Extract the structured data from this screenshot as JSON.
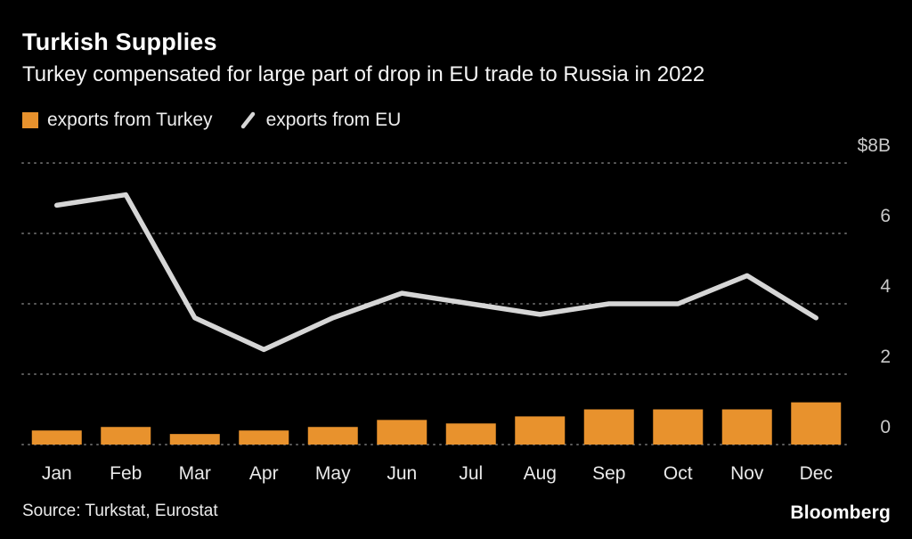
{
  "header": {
    "title": "Turkish Supplies",
    "subtitle": "Turkey compensated for large part of drop in EU trade to Russia in 2022"
  },
  "legend": [
    {
      "label": "exports from Turkey",
      "type": "bar",
      "color": "#e8922d"
    },
    {
      "label": "exports from EU",
      "type": "line",
      "color": "#d6d6d6"
    }
  ],
  "footer": {
    "source": "Source: Turkstat, Eurostat",
    "logo": "Bloomberg"
  },
  "chart_data": {
    "type": "bar",
    "title": "Turkish Supplies",
    "subtitle": "Turkey compensated for large part of drop in EU trade to Russia in 2022",
    "categories": [
      "Jan",
      "Feb",
      "Mar",
      "Apr",
      "May",
      "Jun",
      "Jul",
      "Aug",
      "Sep",
      "Oct",
      "Nov",
      "Dec"
    ],
    "series": [
      {
        "name": "exports from Turkey",
        "type": "bar",
        "color": "#e8922d",
        "values": [
          0.4,
          0.5,
          0.3,
          0.4,
          0.5,
          0.7,
          0.6,
          0.8,
          1.0,
          1.0,
          1.0,
          1.2
        ]
      },
      {
        "name": "exports from EU",
        "type": "line",
        "color": "#d6d6d6",
        "values": [
          6.8,
          7.1,
          3.6,
          2.7,
          3.6,
          4.3,
          4.0,
          3.7,
          4.0,
          4.0,
          4.8,
          3.6
        ]
      }
    ],
    "xlabel": "",
    "ylabel": "",
    "ylim": [
      0,
      8
    ],
    "yticks": [
      0,
      2,
      4,
      6,
      8
    ],
    "ytick_labels": [
      "0",
      "2",
      "4",
      "6",
      "$8B"
    ],
    "grid": "dotted-horizontal",
    "legend_position": "top-left",
    "colors": {
      "background": "#000000",
      "grid": "#5d5d5d",
      "axis_text": "#c9c9c9",
      "month_text": "#e9e9e9"
    }
  }
}
